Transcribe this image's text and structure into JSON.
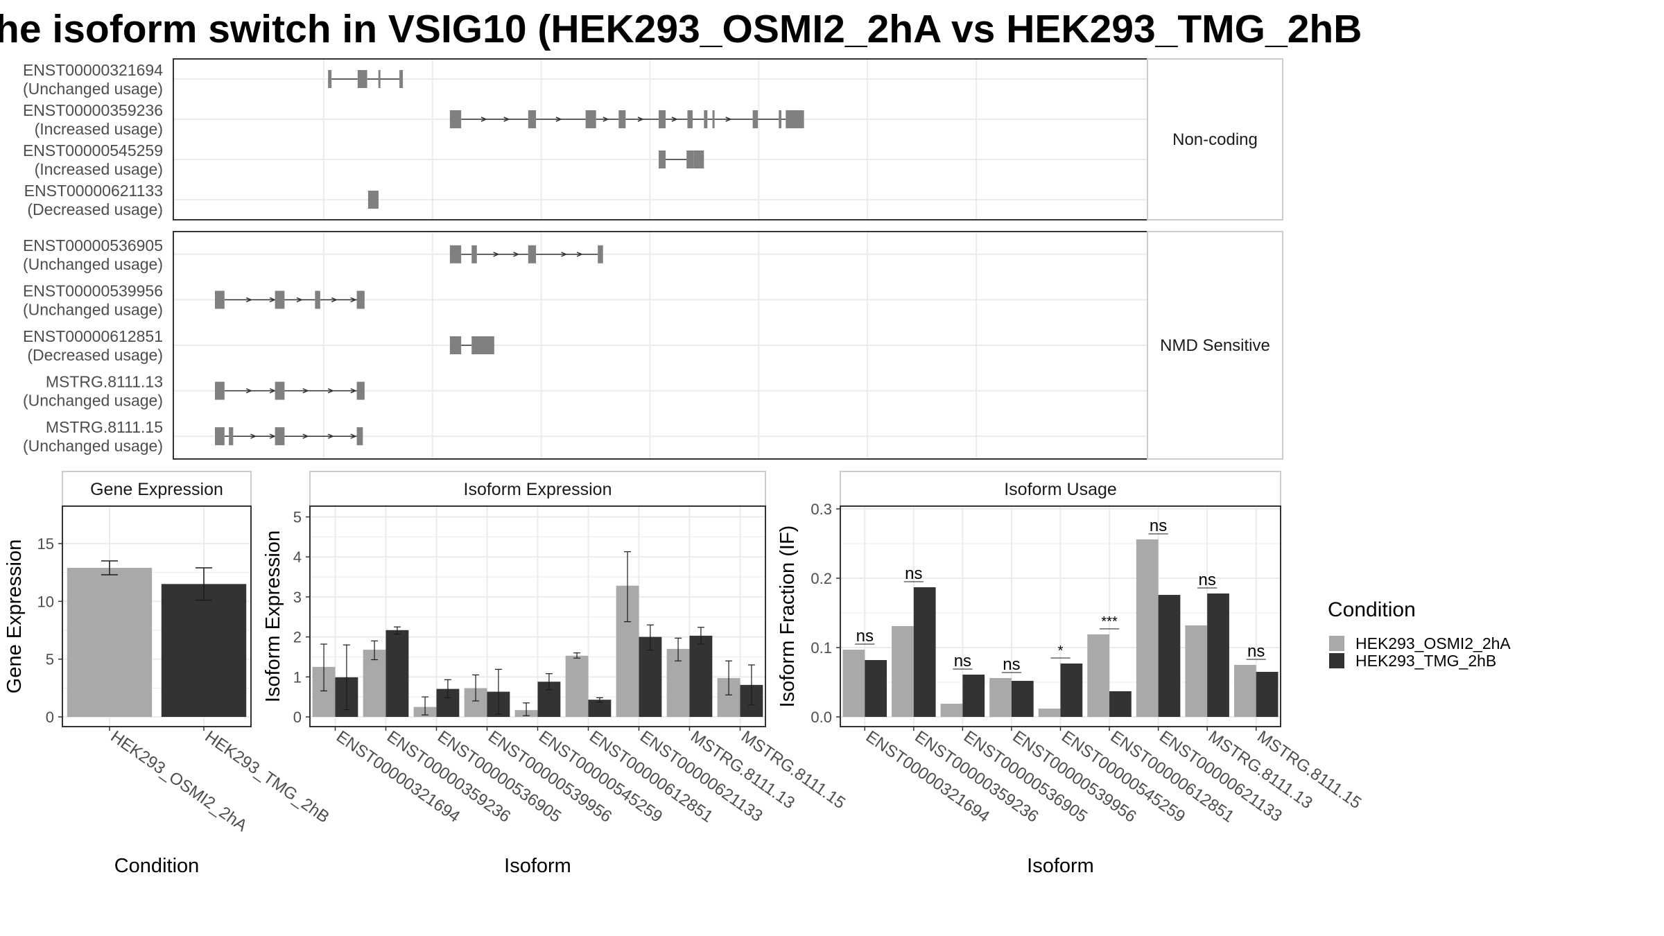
{
  "title": "he isoform switch in VSIG10 (HEK293_OSMI2_2hA vs HEK293_TMG_2hB",
  "colors": {
    "condA": "#a9a9a9",
    "condB": "#333333",
    "exon": "#808080",
    "intron": "#333333",
    "grid": "#ebebeb",
    "strip": "#ffffff",
    "frame": "#333333"
  },
  "structure": {
    "coordinate_range": [
      0,
      1000
    ],
    "gridlines": [
      125,
      250,
      375,
      500,
      625,
      750,
      875
    ],
    "groups": [
      {
        "label": "Non-coding",
        "isoforms": [
          {
            "id": "ENST00000321694",
            "usage": "(Unchanged usage)",
            "exons": [
              [
                130,
                134
              ],
              [
                164,
                175
              ],
              [
                212,
                216
              ]
            ],
            "introns": [
              [
                134,
                164
              ],
              [
                175,
                212
              ]
            ],
            "arrows": [],
            "ticks": [
              189
            ]
          },
          {
            "id": "ENST00000359236",
            "usage": "(Increased usage)",
            "exons": [
              [
                270,
                283
              ],
              [
                360,
                369
              ],
              [
                426,
                438
              ],
              [
                464,
                472
              ],
              [
                510,
                518
              ],
              [
                543,
                549
              ],
              [
                562,
                566
              ],
              [
                618,
                624
              ],
              [
                648,
                651
              ],
              [
                656,
                677
              ]
            ],
            "introns": [
              [
                283,
                360
              ],
              [
                369,
                426
              ],
              [
                438,
                464
              ],
              [
                472,
                510
              ],
              [
                518,
                543
              ],
              [
                549,
                562
              ],
              [
                566,
                618
              ],
              [
                624,
                648
              ],
              [
                651,
                656
              ]
            ],
            "arrows": [
              310,
              336,
              396,
              450,
              490,
              529,
              591
            ],
            "ticks": [
              573
            ]
          },
          {
            "id": "ENST00000545259",
            "usage": "(Increased usage)",
            "exons": [
              [
                510,
                518
              ],
              [
                542,
                550
              ],
              [
                550,
                562
              ]
            ],
            "introns": [
              [
                518,
                542
              ]
            ],
            "arrows": [],
            "ticks": []
          },
          {
            "id": "ENST00000621133",
            "usage": "(Decreased usage)",
            "exons": [
              [
                176,
                188
              ]
            ],
            "introns": [],
            "arrows": [],
            "ticks": []
          }
        ]
      },
      {
        "label": "NMD Sensitive",
        "isoforms": [
          {
            "id": "ENST00000536905",
            "usage": "(Unchanged usage)",
            "exons": [
              [
                270,
                283
              ],
              [
                295,
                301
              ],
              [
                360,
                369
              ],
              [
                440,
                446
              ]
            ],
            "introns": [
              [
                283,
                295
              ],
              [
                301,
                360
              ],
              [
                369,
                440
              ]
            ],
            "arrows": [
              324,
              347,
              402,
              420
            ],
            "ticks": []
          },
          {
            "id": "ENST00000539956",
            "usage": "(Unchanged usage)",
            "exons": [
              [
                0,
                11
              ],
              [
                69,
                80
              ],
              [
                115,
                121
              ],
              [
                163,
                172
              ]
            ],
            "introns": [
              [
                11,
                69
              ],
              [
                80,
                115
              ],
              [
                121,
                163
              ]
            ],
            "arrows": [
              40,
              67,
              98,
              138,
              160
            ],
            "ticks": []
          },
          {
            "id": "ENST00000612851",
            "usage": "(Decreased usage)",
            "exons": [
              [
                270,
                283
              ],
              [
                295,
                321
              ]
            ],
            "introns": [
              [
                283,
                295
              ]
            ],
            "arrows": [],
            "ticks": []
          },
          {
            "id": "MSTRG.8111.13",
            "usage": "(Unchanged usage)",
            "exons": [
              [
                0,
                11
              ],
              [
                69,
                80
              ],
              [
                163,
                172
              ]
            ],
            "introns": [
              [
                11,
                69
              ],
              [
                80,
                163
              ]
            ],
            "arrows": [
              40,
              67,
              105,
              134,
              160
            ],
            "ticks": []
          },
          {
            "id": "MSTRG.8111.15",
            "usage": "(Unchanged usage)",
            "exons": [
              [
                0,
                11
              ],
              [
                16,
                21
              ],
              [
                69,
                80
              ],
              [
                163,
                170
              ]
            ],
            "introns": [
              [
                11,
                16
              ],
              [
                21,
                69
              ],
              [
                80,
                163
              ]
            ],
            "arrows": [
              45,
              67,
              105,
              134,
              160
            ],
            "ticks": []
          }
        ]
      }
    ]
  },
  "chart_data": [
    {
      "type": "bar",
      "title": "Gene Expression",
      "xlabel": "Condition",
      "ylabel": "Gene Expression",
      "ylim": [
        0,
        18
      ],
      "yticks": [
        0,
        5,
        10,
        15
      ],
      "categories": [
        "HEK293_OSMI2_2hA",
        "HEK293_TMG_2hB"
      ],
      "values": [
        12.9,
        11.5
      ],
      "error": [
        [
          12.3,
          13.5
        ],
        [
          10.1,
          12.9
        ]
      ]
    },
    {
      "type": "bar",
      "title": "Isoform Expression",
      "xlabel": "Isoform",
      "ylabel": "Isoform Expression",
      "ylim": [
        0,
        5.2
      ],
      "yticks": [
        0,
        1,
        2,
        3,
        4,
        5
      ],
      "categories": [
        "ENST00000321694",
        "ENST00000359236",
        "ENST00000536905",
        "ENST00000539956",
        "ENST00000545259",
        "ENST00000612851",
        "ENST00000621133",
        "MSTRG.8111.13",
        "MSTRG.8111.15"
      ],
      "series": [
        {
          "name": "HEK293_OSMI2_2hA",
          "values": [
            1.25,
            1.68,
            0.25,
            0.72,
            0.17,
            1.53,
            3.28,
            1.7,
            0.97
          ],
          "error": [
            [
              0.65,
              1.82
            ],
            [
              1.43,
              1.9
            ],
            [
              0.05,
              0.5
            ],
            [
              0.4,
              1.05
            ],
            [
              0.03,
              0.35
            ],
            [
              1.47,
              1.6
            ],
            [
              2.38,
              4.13
            ],
            [
              1.4,
              1.97
            ],
            [
              0.55,
              1.4
            ]
          ]
        },
        {
          "name": "HEK293_TMG_2hB",
          "values": [
            0.99,
            2.17,
            0.7,
            0.63,
            0.88,
            0.43,
            2.0,
            2.03,
            0.8
          ],
          "error": [
            [
              0.18,
              1.8
            ],
            [
              2.07,
              2.25
            ],
            [
              0.48,
              0.93
            ],
            [
              0.07,
              1.19
            ],
            [
              0.68,
              1.08
            ],
            [
              0.37,
              0.48
            ],
            [
              1.67,
              2.3
            ],
            [
              1.82,
              2.24
            ],
            [
              0.3,
              1.3
            ]
          ]
        }
      ]
    },
    {
      "type": "bar",
      "title": "Isoform Usage",
      "xlabel": "Isoform",
      "ylabel": "Isoform Fraction (IF)",
      "ylim": [
        0,
        0.3
      ],
      "yticks": [
        0.0,
        0.1,
        0.2,
        0.3
      ],
      "ytick_labels": [
        "0.0",
        "0.1",
        "0.2",
        "0.3"
      ],
      "categories": [
        "ENST00000321694",
        "ENST00000359236",
        "ENST00000536905",
        "ENST00000539956",
        "ENST00000545259",
        "ENST00000612851",
        "ENST00000621133",
        "MSTRG.8111.13",
        "MSTRG.8111.15"
      ],
      "series": [
        {
          "name": "HEK293_OSMI2_2hA",
          "values": [
            0.097,
            0.131,
            0.019,
            0.056,
            0.012,
            0.119,
            0.256,
            0.132,
            0.075
          ]
        },
        {
          "name": "HEK293_TMG_2hB",
          "values": [
            0.082,
            0.187,
            0.061,
            0.052,
            0.077,
            0.037,
            0.176,
            0.178,
            0.065
          ]
        }
      ],
      "significance": [
        "ns",
        "ns",
        "ns",
        "ns",
        "*",
        "***",
        "ns",
        "ns",
        "ns"
      ]
    }
  ],
  "legend": {
    "title": "Condition",
    "items": [
      "HEK293_OSMI2_2hA",
      "HEK293_TMG_2hB"
    ]
  }
}
